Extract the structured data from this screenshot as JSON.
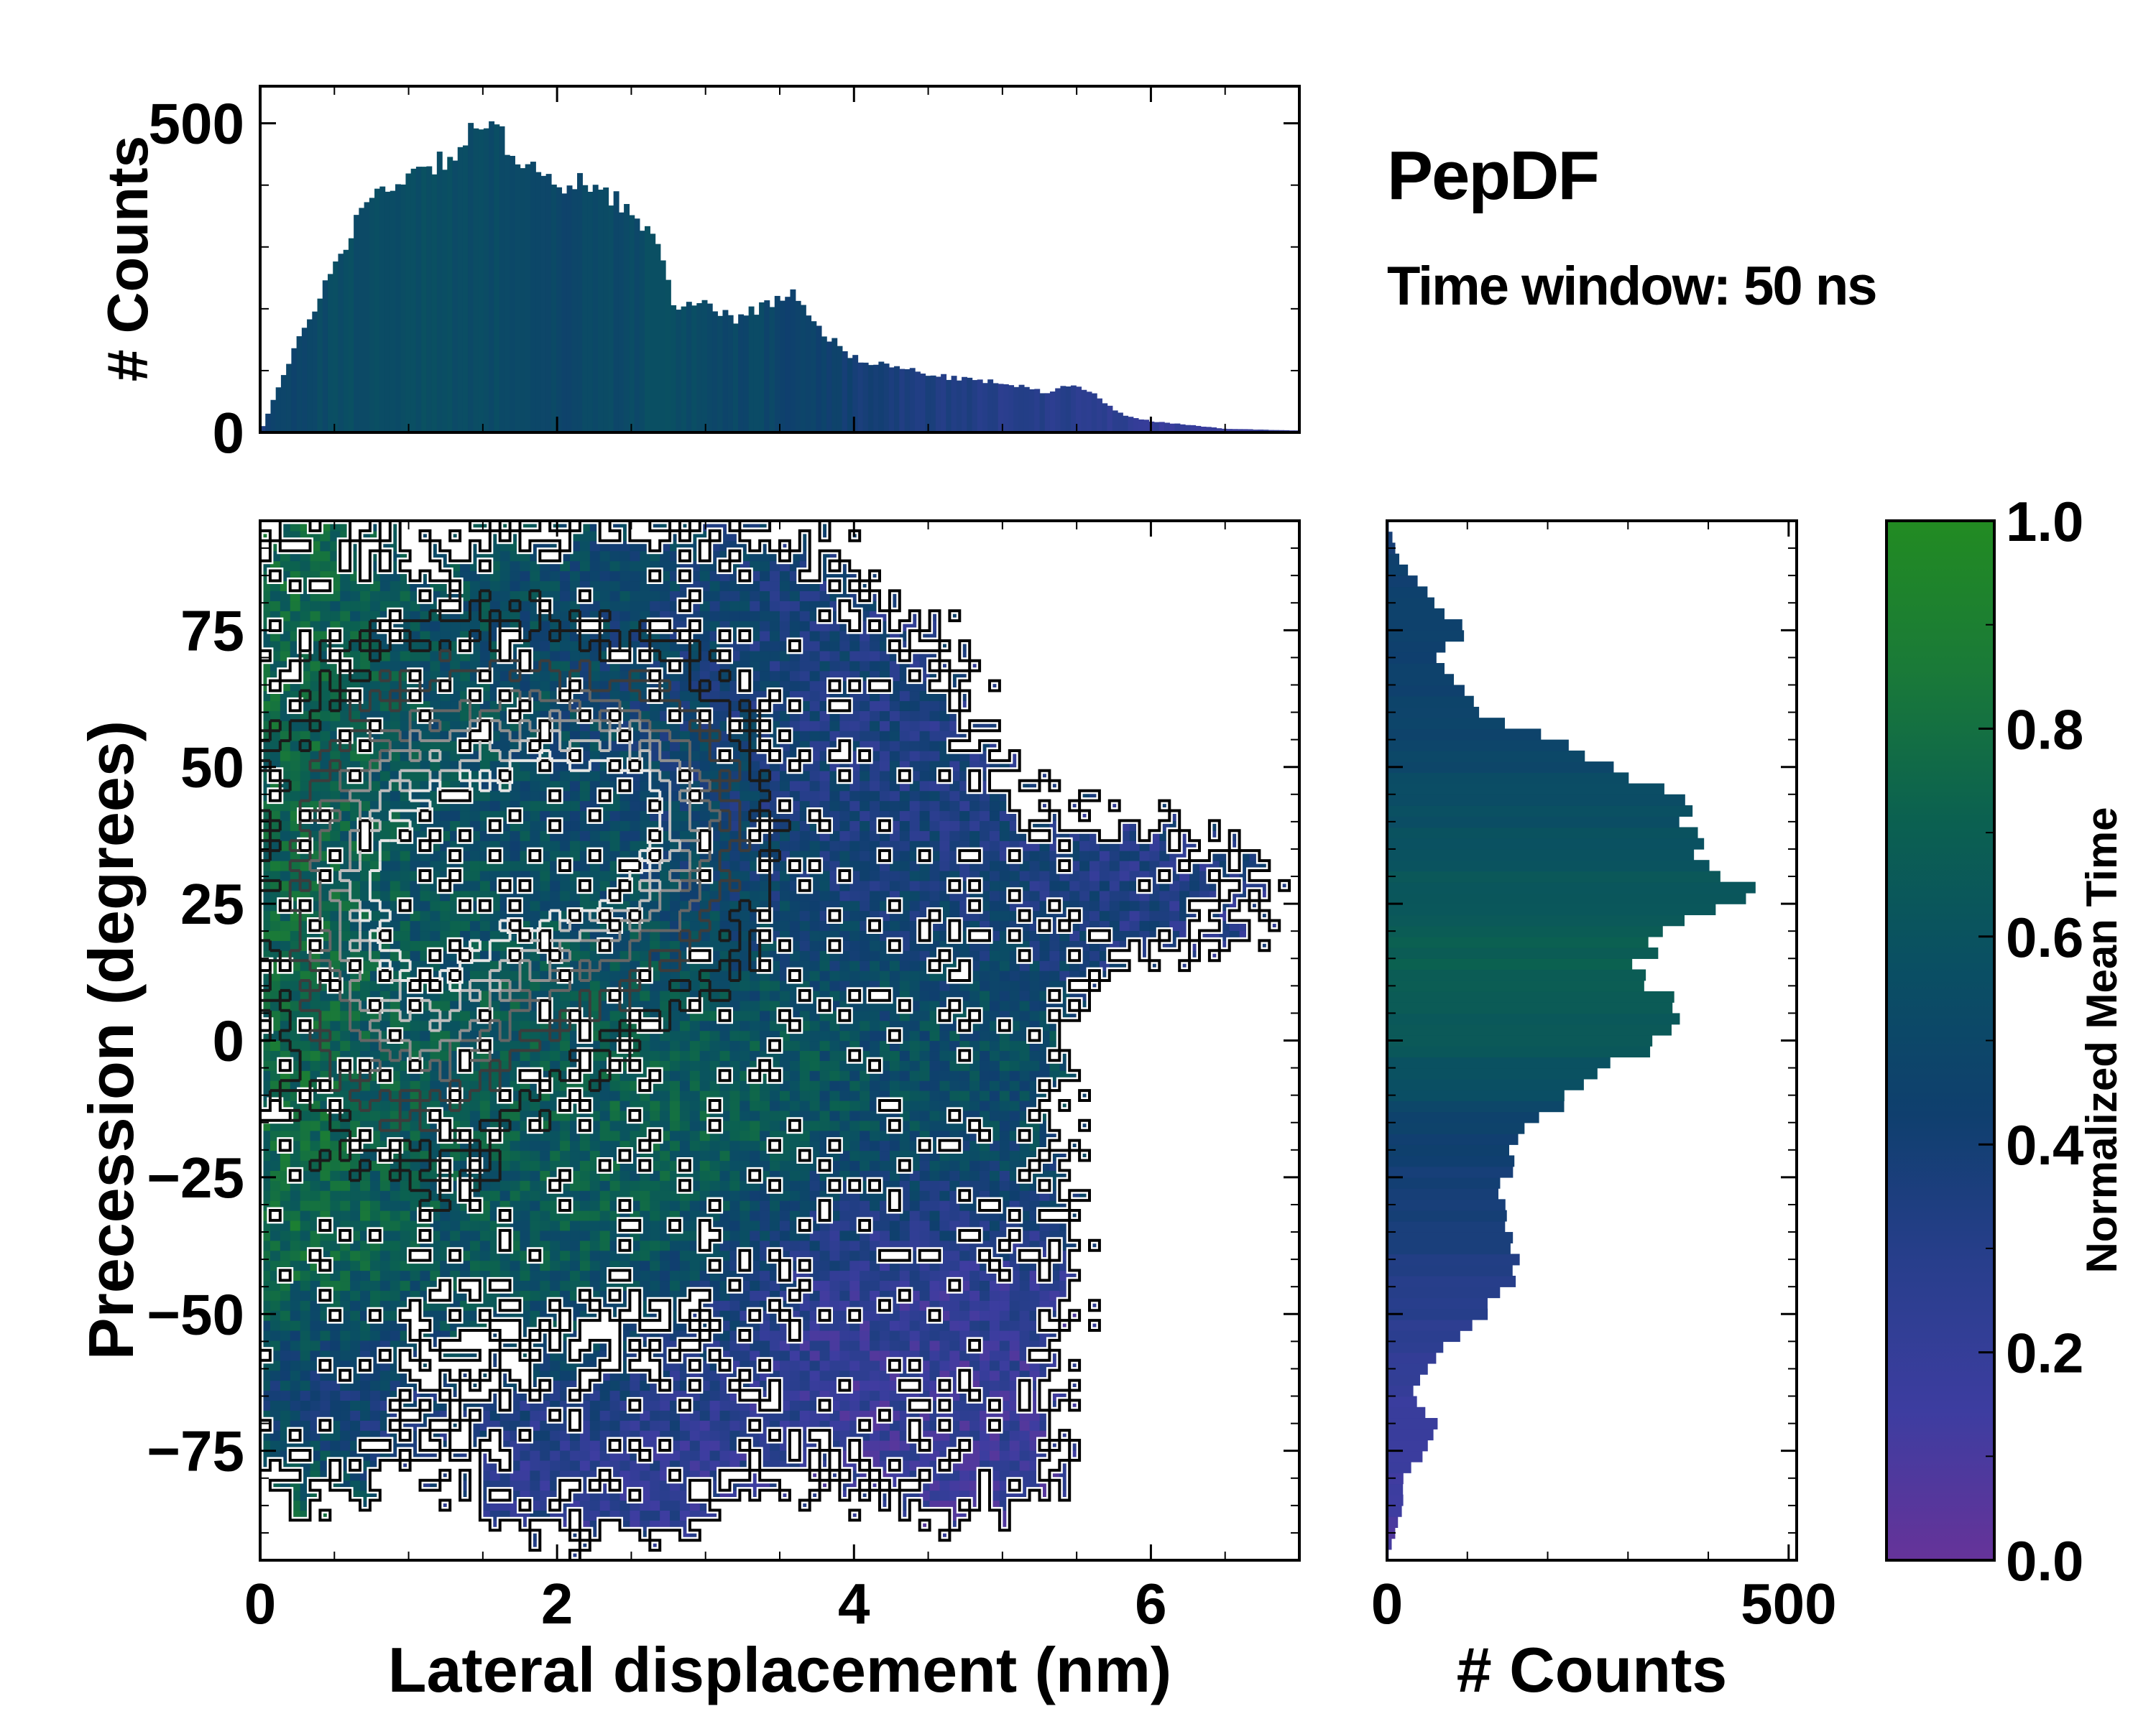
{
  "annotation": {
    "title": "PepDF",
    "subtitle": "Time window: 50 ns"
  },
  "chart_data": [
    {
      "type": "heatmap",
      "name": "main",
      "xlabel": "Lateral displacement (nm)",
      "ylabel": "Precession (degrees)",
      "xlim": [
        0,
        7
      ],
      "ylim": [
        -95,
        95
      ],
      "xticks": [
        "0",
        "2",
        "4",
        "6"
      ],
      "xtick_values": [
        0,
        2,
        4,
        6
      ],
      "yticks": [
        "−75",
        "−50",
        "−25",
        "0",
        "25",
        "50",
        "75"
      ],
      "ytick_values": [
        -75,
        -50,
        -25,
        0,
        25,
        50,
        75
      ],
      "color_meaning": "Normalized Mean Time",
      "region_blobs": [
        {
          "x": 1.6,
          "y": 20,
          "sx": 1.3,
          "sy": 45,
          "w": 1.0,
          "t": 0.62
        },
        {
          "x": 3.4,
          "y": 45,
          "sx": 1.1,
          "sy": 30,
          "w": 0.7,
          "t": 0.3
        },
        {
          "x": 0.3,
          "y": 5,
          "sx": 0.35,
          "sy": 60,
          "w": 0.6,
          "t": 0.85
        },
        {
          "x": 2.6,
          "y": -5,
          "sx": 0.9,
          "sy": 18,
          "w": 0.6,
          "t": 0.8
        },
        {
          "x": 4.4,
          "y": -50,
          "sx": 0.9,
          "sy": 18,
          "w": 0.55,
          "t": 0.15
        },
        {
          "x": 2.3,
          "y": -78,
          "sx": 0.8,
          "sy": 12,
          "w": 0.5,
          "t": 0.2
        },
        {
          "x": 6.0,
          "y": 27,
          "sx": 0.8,
          "sy": 12,
          "w": 0.45,
          "t": 0.3
        },
        {
          "x": 4.8,
          "y": -8,
          "sx": 0.6,
          "sy": 22,
          "w": 0.4,
          "t": 0.6
        },
        {
          "x": 4.8,
          "y": -80,
          "sx": 0.6,
          "sy": 10,
          "w": 0.35,
          "t": 0.18
        },
        {
          "x": 0.4,
          "y": -62,
          "sx": 0.4,
          "sy": 10,
          "w": 0.35,
          "t": 0.05
        }
      ],
      "density_peaks": [
        {
          "x": 1.7,
          "y": 35,
          "sx": 0.8,
          "sy": 22
        },
        {
          "x": 1.0,
          "y": 20,
          "sx": 0.5,
          "sy": 25
        },
        {
          "x": 2.4,
          "y": 40,
          "sx": 0.5,
          "sy": 15
        }
      ]
    },
    {
      "type": "bar",
      "name": "top-marginal",
      "ylabel": "# Counts",
      "xlim": [
        0,
        7
      ],
      "ylim": [
        0,
        560
      ],
      "yticks": [
        "0",
        "500"
      ],
      "ytick_values": [
        0,
        500
      ],
      "bin_width": 0.035,
      "profile_x": [
        0,
        0.1,
        0.3,
        0.5,
        0.7,
        1.0,
        1.3,
        1.5,
        1.7,
        1.9,
        2.0,
        2.2,
        2.4,
        2.7,
        2.8,
        3.0,
        3.2,
        3.4,
        3.6,
        3.8,
        4.0,
        4.3,
        4.6,
        5.0,
        5.3,
        5.5,
        5.8,
        6.0,
        6.5,
        7.0
      ],
      "profile_counts": [
        0,
        60,
        170,
        270,
        370,
        420,
        450,
        500,
        460,
        420,
        380,
        410,
        380,
        290,
        200,
        210,
        185,
        205,
        230,
        160,
        120,
        105,
        90,
        80,
        65,
        80,
        30,
        18,
        6,
        3
      ],
      "profile_time": [
        0.35,
        0.45,
        0.5,
        0.55,
        0.55,
        0.55,
        0.55,
        0.55,
        0.52,
        0.5,
        0.5,
        0.5,
        0.52,
        0.55,
        0.55,
        0.52,
        0.5,
        0.5,
        0.45,
        0.45,
        0.4,
        0.35,
        0.33,
        0.3,
        0.28,
        0.28,
        0.25,
        0.2,
        0.2,
        0.2
      ]
    },
    {
      "type": "bar",
      "name": "right-marginal",
      "orientation": "horizontal",
      "xlabel": "# Counts",
      "xlim": [
        0,
        510
      ],
      "ylim": [
        -95,
        95
      ],
      "xticks": [
        "0",
        "500"
      ],
      "xtick_values": [
        0,
        500
      ],
      "bin_width": 2,
      "profile_y": [
        95,
        88,
        80,
        75,
        70,
        60,
        55,
        50,
        45,
        40,
        35,
        30,
        27,
        25,
        20,
        15,
        10,
        5,
        0,
        -5,
        -10,
        -15,
        -20,
        -25,
        -30,
        -35,
        -40,
        -45,
        -50,
        -55,
        -60,
        -65,
        -70,
        -75,
        -80,
        -85,
        -90,
        -95
      ],
      "profile_counts": [
        0,
        15,
        60,
        100,
        60,
        120,
        200,
        300,
        350,
        370,
        400,
        430,
        450,
        420,
        360,
        320,
        330,
        350,
        330,
        280,
        230,
        180,
        160,
        150,
        140,
        150,
        160,
        150,
        120,
        80,
        50,
        30,
        60,
        50,
        20,
        20,
        10,
        0
      ],
      "profile_time": [
        0.4,
        0.42,
        0.45,
        0.45,
        0.45,
        0.47,
        0.48,
        0.52,
        0.55,
        0.58,
        0.6,
        0.62,
        0.64,
        0.65,
        0.68,
        0.7,
        0.68,
        0.66,
        0.65,
        0.6,
        0.55,
        0.45,
        0.42,
        0.4,
        0.38,
        0.36,
        0.34,
        0.3,
        0.28,
        0.25,
        0.22,
        0.18,
        0.16,
        0.15,
        0.13,
        0.12,
        0.1,
        0.1
      ]
    },
    {
      "type": "colorbar",
      "name": "colorbar",
      "label": "Normalized Mean Time",
      "range": [
        0.0,
        1.0
      ],
      "ticks": [
        "0.0",
        "0.2",
        "0.4",
        "0.6",
        "0.8",
        "1.0"
      ],
      "tick_values": [
        0.0,
        0.2,
        0.4,
        0.6,
        0.8,
        1.0
      ],
      "colormap": [
        "#663399",
        "#3d3da0",
        "#283e8c",
        "#0f3f6e",
        "#0a4f63",
        "#0b6150",
        "#1a7a38",
        "#228b22"
      ]
    }
  ]
}
